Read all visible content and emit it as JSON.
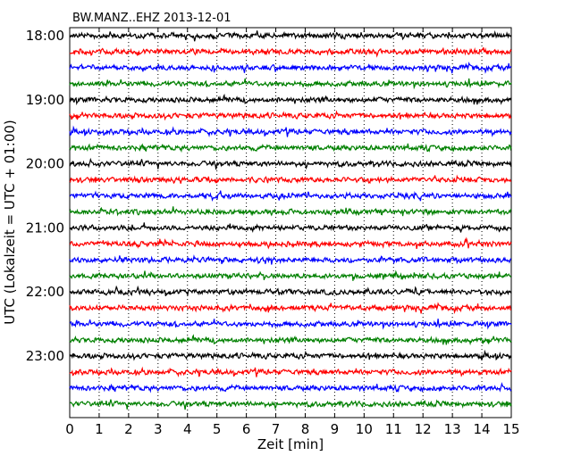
{
  "chart_data": {
    "type": "line",
    "title": "BW.MANZ..EHZ 2013-12-01",
    "xlabel": "Zeit  [min]",
    "ylabel": "UTC (Lokalzeit = UTC + 01:00)",
    "xlim": [
      0,
      15
    ],
    "x_ticks": [
      "0",
      "1",
      "2",
      "3",
      "4",
      "5",
      "6",
      "7",
      "8",
      "9",
      "10",
      "11",
      "12",
      "13",
      "14",
      "15"
    ],
    "y_ticks": [
      "18:00",
      "19:00",
      "20:00",
      "21:00",
      "22:00",
      "23:00"
    ],
    "grid": "x-dotted",
    "trace_interval_min": 15,
    "trace_start": "18:00",
    "trace_count": 24,
    "trace_colors": [
      "#000000",
      "#ff0000",
      "#0000ff",
      "#008000"
    ]
  }
}
